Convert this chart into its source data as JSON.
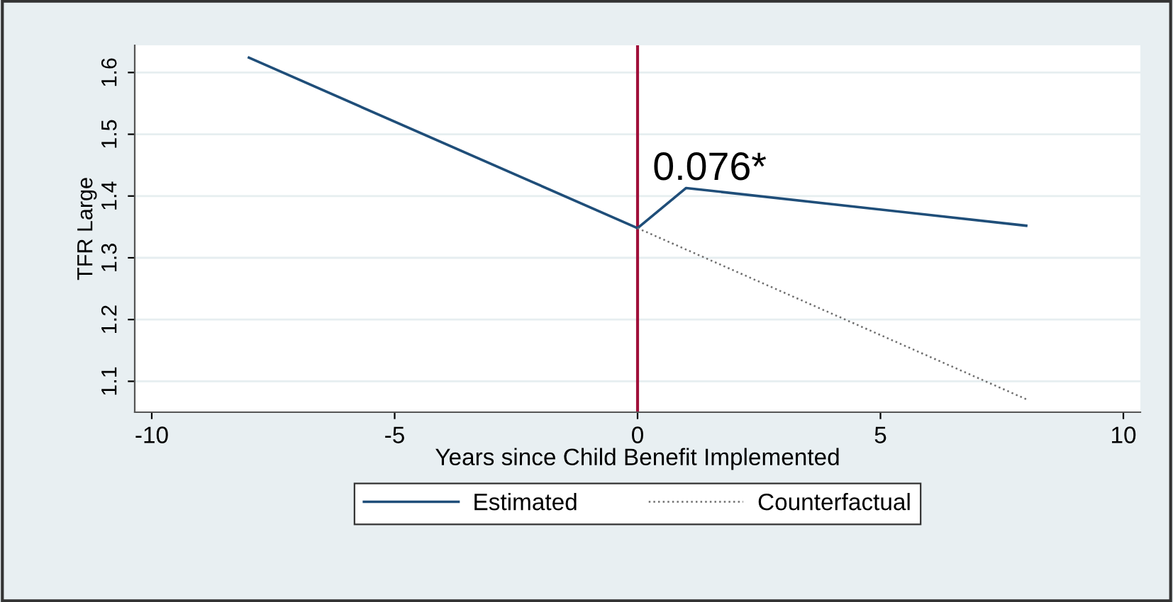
{
  "chart_data": {
    "type": "line",
    "xlabel": "Years since Child Benefit Implemented",
    "ylabel": "TFR Large",
    "series": [
      {
        "name": "Estimated",
        "color": "#1f4e79",
        "x": [
          -8,
          0,
          1,
          8
        ],
        "values": [
          1.624,
          1.348,
          1.413,
          1.352
        ],
        "line_style": "solid"
      },
      {
        "name": "Counterfactual",
        "color": "#6e6e6e",
        "x": [
          0,
          8
        ],
        "values": [
          1.348,
          1.071
        ],
        "line_style": "dotted"
      }
    ],
    "annotations": [
      {
        "text": "0.076*",
        "x": 1,
        "y": 1.413
      }
    ],
    "ref_lines": [
      {
        "axis": "x",
        "value": 0,
        "color": "#a0103a"
      }
    ],
    "xlim": [
      -10.35,
      10.35
    ],
    "xticks": [
      {
        "value": -10,
        "label": "-10"
      },
      {
        "value": -5,
        "label": "-5"
      },
      0,
      5,
      10
    ],
    "ylim": [
      1.05,
      1.644
    ],
    "yticks": [
      1.1,
      1.2,
      1.3,
      1.4,
      1.5,
      1.6
    ],
    "grid": "y",
    "legend": "bottom",
    "marker": "none"
  }
}
